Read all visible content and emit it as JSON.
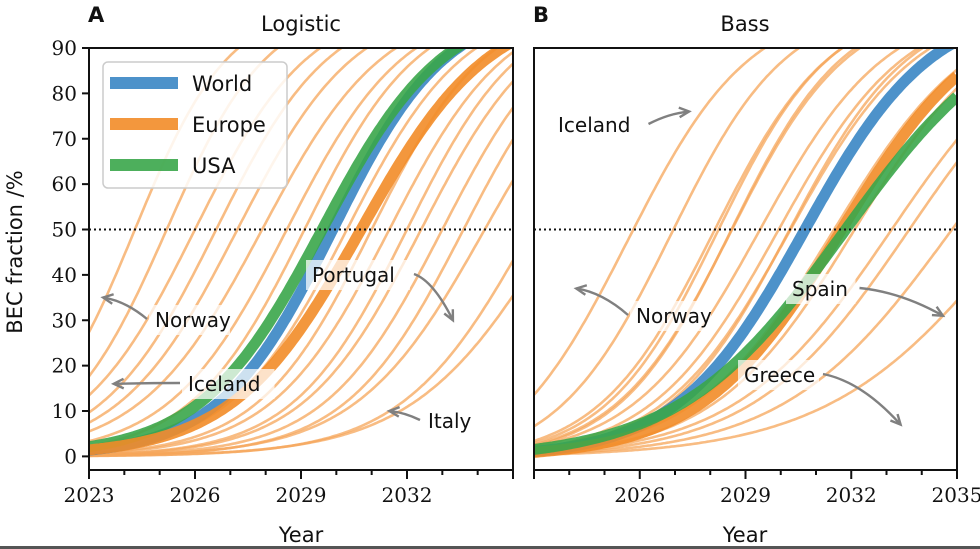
{
  "chart_data": [
    {
      "type": "line",
      "panel_letter": "A",
      "title": "Logistic",
      "xlabel": "Year",
      "ylabel": "BEC fraction /%",
      "xlim": [
        2023,
        2035
      ],
      "ylim": [
        -3,
        90
      ],
      "xticks": [
        2023,
        2026,
        2029,
        2032
      ],
      "yticks": [
        0,
        10,
        20,
        30,
        40,
        50,
        60,
        70,
        80,
        90
      ],
      "reference_line": {
        "y": 50,
        "style": "dotted"
      },
      "legend": {
        "placement": "top-left",
        "entries": [
          {
            "label": "World",
            "color": "#3a86c4"
          },
          {
            "label": "Europe",
            "color": "#f28c28"
          },
          {
            "label": "USA",
            "color": "#3aa64a"
          }
        ]
      },
      "series": [
        {
          "name": "World",
          "color": "#3a86c4",
          "model": "logistic",
          "midpoint_year": 2029.9,
          "rate": 0.62,
          "band": true
        },
        {
          "name": "USA",
          "color": "#3aa64a",
          "model": "logistic",
          "midpoint_year": 2029.6,
          "rate": 0.58,
          "band": true
        },
        {
          "name": "Europe",
          "color": "#f28c28",
          "model": "logistic",
          "midpoint_year": 2030.7,
          "rate": 0.55,
          "band": true
        }
      ],
      "countries": [
        {
          "midpoint_year": 2024.3,
          "rate": 0.75
        },
        {
          "midpoint_year": 2025.2,
          "rate": 0.7
        },
        {
          "midpoint_year": 2026.0,
          "rate": 0.62
        },
        {
          "midpoint_year": 2026.6,
          "rate": 0.62
        },
        {
          "midpoint_year": 2027.2,
          "rate": 0.6
        },
        {
          "midpoint_year": 2027.9,
          "rate": 0.58
        },
        {
          "midpoint_year": 2028.6,
          "rate": 0.6
        },
        {
          "midpoint_year": 2029.1,
          "rate": 0.62
        },
        {
          "midpoint_year": 2030.3,
          "rate": 0.6
        },
        {
          "midpoint_year": 2031.0,
          "rate": 0.62
        },
        {
          "midpoint_year": 2031.5,
          "rate": 0.6
        },
        {
          "midpoint_year": 2032.0,
          "rate": 0.62
        },
        {
          "midpoint_year": 2032.4,
          "rate": 0.6
        },
        {
          "midpoint_year": 2033.0,
          "rate": 0.6
        },
        {
          "midpoint_year": 2033.6,
          "rate": 0.6
        },
        {
          "midpoint_year": 2034.2,
          "rate": 0.55
        },
        {
          "midpoint_year": 2035.5,
          "rate": 0.55
        },
        {
          "midpoint_year": 2036.2,
          "rate": 0.5
        }
      ],
      "annotations": [
        {
          "text": "Norway",
          "target_year": 2023.4,
          "target_value": 35
        },
        {
          "text": "Iceland",
          "target_year": 2023.7,
          "target_value": 16
        },
        {
          "text": "Portugal",
          "target_year": 2033.3,
          "target_value": 30
        },
        {
          "text": "Italy",
          "target_year": 2031.5,
          "target_value": 10
        }
      ]
    },
    {
      "type": "line",
      "panel_letter": "B",
      "title": "Bass",
      "xlabel": "Year",
      "ylabel": "",
      "xlim": [
        2023,
        2035
      ],
      "ylim": [
        -3,
        90
      ],
      "xticks": [
        2026,
        2029,
        2032,
        2035
      ],
      "yticks": [],
      "reference_line": {
        "y": 50,
        "style": "dotted"
      },
      "series": [
        {
          "name": "World",
          "color": "#3a86c4",
          "model": "bass",
          "p": 0.002,
          "q": 0.55,
          "band": true
        },
        {
          "name": "Europe",
          "color": "#f28c28",
          "model": "bass",
          "p": 0.0018,
          "q": 0.5,
          "band": true
        },
        {
          "name": "USA",
          "color": "#3aa64a",
          "model": "bass",
          "p": 0.0035,
          "q": 0.42,
          "band": true
        }
      ],
      "countries": [
        {
          "p": 0.028,
          "q": 0.55
        },
        {
          "p": 0.012,
          "q": 0.6
        },
        {
          "p": 0.006,
          "q": 0.6
        },
        {
          "p": 0.005,
          "q": 0.62
        },
        {
          "p": 0.0045,
          "q": 0.6
        },
        {
          "p": 0.004,
          "q": 0.62
        },
        {
          "p": 0.004,
          "q": 0.55
        },
        {
          "p": 0.003,
          "q": 0.55
        },
        {
          "p": 0.0025,
          "q": 0.55
        },
        {
          "p": 0.002,
          "q": 0.58
        },
        {
          "p": 0.002,
          "q": 0.5
        },
        {
          "p": 0.0015,
          "q": 0.5
        },
        {
          "p": 0.0015,
          "q": 0.45
        },
        {
          "p": 0.0012,
          "q": 0.45
        },
        {
          "p": 0.001,
          "q": 0.42
        },
        {
          "p": 0.0008,
          "q": 0.38
        }
      ],
      "annotations": [
        {
          "text": "Iceland",
          "target_year": 2027.4,
          "target_value": 76
        },
        {
          "text": "Norway",
          "target_year": 2024.2,
          "target_value": 37
        },
        {
          "text": "Spain",
          "target_year": 2034.6,
          "target_value": 31
        },
        {
          "text": "Greece",
          "target_year": 2033.4,
          "target_value": 7
        }
      ]
    }
  ]
}
